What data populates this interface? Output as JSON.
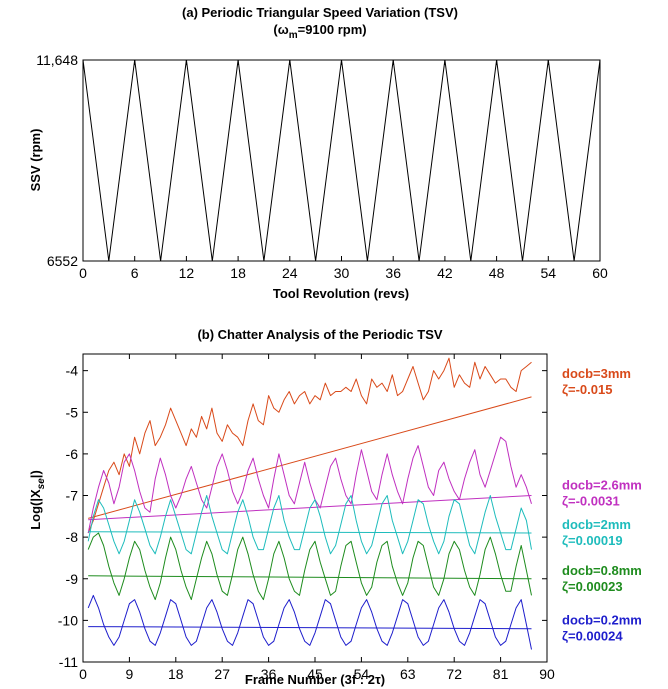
{
  "chart_data": [
    {
      "type": "line",
      "title": "(a) Periodic Triangular Speed Variation  (TSV)",
      "subtitle_prefix": "(",
      "subtitle_omega": "ω",
      "subtitle_sub": "m",
      "subtitle_suffix": "=9100 rpm)",
      "xlabel": "Tool Revolution (revs)",
      "ylabel": "SSV (rpm)",
      "xlim": [
        0,
        60
      ],
      "ylim": [
        6552,
        11648
      ],
      "xticks": [
        0,
        6,
        12,
        18,
        24,
        30,
        36,
        42,
        48,
        54,
        60
      ],
      "yticks": [
        6552,
        11648
      ],
      "ytick_labels": [
        "6552",
        "11,648"
      ],
      "grid": false,
      "series": [
        {
          "color": "#000000",
          "x": [
            0,
            3,
            6,
            9,
            12,
            15,
            18,
            21,
            24,
            27,
            30,
            33,
            36,
            39,
            42,
            45,
            48,
            51,
            54,
            57,
            60
          ],
          "y": [
            11648,
            6552,
            11648,
            6552,
            11648,
            6552,
            11648,
            6552,
            11648,
            6552,
            11648,
            6552,
            11648,
            6552,
            11648,
            6552,
            11648,
            6552,
            11648,
            6552,
            11648
          ]
        }
      ]
    },
    {
      "type": "line",
      "title": "(b) Chatter Analysis of the Periodic TSV",
      "xlabel": "Frame Number  (3f : 2τ)",
      "ylabel_prefix": "Log(|X",
      "ylabel_sub": "se",
      "ylabel_suffix": "|)",
      "xlim": [
        0,
        90
      ],
      "ylim": [
        -11,
        -3.6
      ],
      "xticks": [
        0,
        9,
        18,
        27,
        36,
        45,
        54,
        63,
        72,
        81,
        90
      ],
      "yticks": [
        -11,
        -10,
        -9,
        -8,
        -7,
        -6,
        -5,
        -4
      ],
      "grid": false,
      "series": [
        {
          "name": "docb=3mm",
          "zeta": "ζ=-0.015",
          "color": "#d94a1a",
          "x": [
            1,
            2,
            3,
            4,
            5,
            6,
            7,
            8,
            9,
            10,
            11,
            12,
            13,
            14,
            15,
            16,
            17,
            18,
            19,
            20,
            21,
            22,
            23,
            24,
            25,
            26,
            27,
            28,
            29,
            30,
            31,
            32,
            33,
            34,
            35,
            36,
            37,
            38,
            39,
            40,
            41,
            42,
            43,
            44,
            45,
            46,
            47,
            48,
            49,
            50,
            51,
            52,
            53,
            54,
            55,
            56,
            57,
            58,
            59,
            60,
            61,
            62,
            63,
            64,
            65,
            66,
            67,
            68,
            69,
            70,
            71,
            72,
            73,
            74,
            75,
            76,
            77,
            78,
            79,
            80,
            81,
            82,
            83,
            84,
            85,
            86,
            87
          ],
          "y": [
            -7.9,
            -7.6,
            -7.2,
            -6.8,
            -6.4,
            -6.2,
            -6.5,
            -6.0,
            -6.3,
            -5.6,
            -6.0,
            -5.5,
            -5.2,
            -5.8,
            -5.6,
            -5.3,
            -4.9,
            -5.2,
            -5.5,
            -5.8,
            -5.4,
            -5.6,
            -5.1,
            -5.4,
            -4.9,
            -5.5,
            -5.7,
            -5.3,
            -5.5,
            -5.6,
            -5.8,
            -5.2,
            -4.8,
            -5.2,
            -5.3,
            -4.6,
            -4.9,
            -5.0,
            -4.7,
            -4.5,
            -4.8,
            -4.6,
            -4.5,
            -4.8,
            -4.6,
            -4.7,
            -4.3,
            -4.6,
            -4.5,
            -4.5,
            -4.4,
            -4.5,
            -4.2,
            -4.6,
            -4.8,
            -4.2,
            -4.4,
            -4.3,
            -4.5,
            -4.1,
            -4.6,
            -4.5,
            -4.2,
            -3.9,
            -4.3,
            -4.7,
            -4.5,
            -4.0,
            -4.2,
            -4.0,
            -3.7,
            -4.4,
            -4.1,
            -4.3,
            -4.4,
            -3.8,
            -4.2,
            -3.9,
            -4.1,
            -4.3,
            -4.2,
            -4.2,
            -4.4,
            -4.5,
            -4.0,
            -3.9,
            -3.8
          ]
        },
        {
          "name": "docb=3mm fit",
          "color": "#d94a1a",
          "x": [
            1,
            87
          ],
          "y": [
            -7.55,
            -4.63
          ]
        },
        {
          "name": "docb=2.6mm",
          "zeta": "ζ=-0.0031",
          "color": "#c030c0",
          "x": [
            1,
            2,
            3,
            4,
            5,
            6,
            7,
            8,
            9,
            10,
            11,
            12,
            13,
            14,
            15,
            16,
            17,
            18,
            19,
            20,
            21,
            22,
            23,
            24,
            25,
            26,
            27,
            28,
            29,
            30,
            31,
            32,
            33,
            34,
            35,
            36,
            37,
            38,
            39,
            40,
            41,
            42,
            43,
            44,
            45,
            46,
            47,
            48,
            49,
            50,
            51,
            52,
            53,
            54,
            55,
            56,
            57,
            58,
            59,
            60,
            61,
            62,
            63,
            64,
            65,
            66,
            67,
            68,
            69,
            70,
            71,
            72,
            73,
            74,
            75,
            76,
            77,
            78,
            79,
            80,
            81,
            82,
            83,
            84,
            85,
            86,
            87
          ],
          "y": [
            -7.9,
            -7.3,
            -6.8,
            -6.4,
            -6.7,
            -7.2,
            -6.8,
            -6.2,
            -6.0,
            -6.4,
            -6.9,
            -7.3,
            -7.4,
            -6.6,
            -6.1,
            -6.5,
            -7.0,
            -7.3,
            -7.0,
            -6.6,
            -6.3,
            -6.7,
            -7.1,
            -7.3,
            -6.8,
            -6.3,
            -6.0,
            -6.4,
            -6.9,
            -7.2,
            -6.9,
            -6.4,
            -6.1,
            -6.6,
            -7.0,
            -7.3,
            -6.6,
            -6.0,
            -6.5,
            -7.0,
            -7.2,
            -6.7,
            -6.2,
            -6.7,
            -7.1,
            -7.3,
            -6.8,
            -6.3,
            -6.1,
            -6.6,
            -7.0,
            -7.2,
            -6.5,
            -5.9,
            -6.4,
            -6.9,
            -7.1,
            -6.5,
            -6.0,
            -6.5,
            -6.9,
            -7.2,
            -6.6,
            -6.1,
            -5.8,
            -6.3,
            -6.8,
            -7.0,
            -6.4,
            -6.2,
            -6.6,
            -6.9,
            -7.1,
            -6.6,
            -6.2,
            -5.9,
            -6.5,
            -6.8,
            -6.4,
            -6.0,
            -5.6,
            -5.7,
            -6.3,
            -6.8,
            -6.5,
            -6.8,
            -7.2
          ]
        },
        {
          "name": "docb=2.6mm fit",
          "color": "#c030c0",
          "x": [
            1,
            87
          ],
          "y": [
            -7.58,
            -7.0
          ]
        },
        {
          "name": "docb=2mm",
          "zeta": "ζ=0.00019",
          "color": "#1ebcbc",
          "x": [
            1,
            2,
            3,
            4,
            5,
            6,
            7,
            8,
            9,
            10,
            11,
            12,
            13,
            14,
            15,
            16,
            17,
            18,
            19,
            20,
            21,
            22,
            23,
            24,
            25,
            26,
            27,
            28,
            29,
            30,
            31,
            32,
            33,
            34,
            35,
            36,
            37,
            38,
            39,
            40,
            41,
            42,
            43,
            44,
            45,
            46,
            47,
            48,
            49,
            50,
            51,
            52,
            53,
            54,
            55,
            56,
            57,
            58,
            59,
            60,
            61,
            62,
            63,
            64,
            65,
            66,
            67,
            68,
            69,
            70,
            71,
            72,
            73,
            74,
            75,
            76,
            77,
            78,
            79,
            80,
            81,
            82,
            83,
            84,
            85,
            86,
            87
          ],
          "y": [
            -8.1,
            -7.5,
            -7.1,
            -7.3,
            -7.7,
            -8.1,
            -8.4,
            -8.1,
            -7.6,
            -7.1,
            -7.4,
            -7.8,
            -8.2,
            -8.4,
            -8.0,
            -7.5,
            -7.1,
            -7.5,
            -7.9,
            -8.3,
            -8.4,
            -7.9,
            -7.4,
            -7.0,
            -7.5,
            -7.9,
            -8.3,
            -8.4,
            -7.9,
            -7.4,
            -7.1,
            -7.5,
            -8.0,
            -8.3,
            -8.3,
            -7.8,
            -7.3,
            -7.0,
            -7.6,
            -8.0,
            -8.3,
            -8.3,
            -7.8,
            -7.3,
            -7.1,
            -7.5,
            -8.0,
            -8.4,
            -8.2,
            -7.7,
            -7.2,
            -7.0,
            -7.6,
            -8.1,
            -8.4,
            -8.2,
            -7.7,
            -7.2,
            -7.0,
            -7.6,
            -8.0,
            -8.4,
            -8.1,
            -7.6,
            -7.1,
            -7.2,
            -7.7,
            -8.1,
            -8.4,
            -8.1,
            -7.5,
            -7.1,
            -7.2,
            -7.7,
            -8.2,
            -8.4,
            -7.9,
            -7.4,
            -7.0,
            -7.5,
            -7.9,
            -8.3,
            -8.3,
            -7.8,
            -7.3,
            -7.6,
            -8.3
          ]
        },
        {
          "name": "docb=2mm fit",
          "color": "#1ebcbc",
          "x": [
            1,
            87
          ],
          "y": [
            -7.87,
            -7.9
          ]
        },
        {
          "name": "docb=0.8mm",
          "zeta": "ζ=0.00023",
          "color": "#1e8c1e",
          "x": [
            1,
            2,
            3,
            4,
            5,
            6,
            7,
            8,
            9,
            10,
            11,
            12,
            13,
            14,
            15,
            16,
            17,
            18,
            19,
            20,
            21,
            22,
            23,
            24,
            25,
            26,
            27,
            28,
            29,
            30,
            31,
            32,
            33,
            34,
            35,
            36,
            37,
            38,
            39,
            40,
            41,
            42,
            43,
            44,
            45,
            46,
            47,
            48,
            49,
            50,
            51,
            52,
            53,
            54,
            55,
            56,
            57,
            58,
            59,
            60,
            61,
            62,
            63,
            64,
            65,
            66,
            67,
            68,
            69,
            70,
            71,
            72,
            73,
            74,
            75,
            76,
            77,
            78,
            79,
            80,
            81,
            82,
            83,
            84,
            85,
            86,
            87
          ],
          "y": [
            -8.3,
            -8.0,
            -7.9,
            -8.2,
            -8.7,
            -9.1,
            -9.4,
            -9.0,
            -8.5,
            -8.1,
            -8.3,
            -8.8,
            -9.2,
            -9.5,
            -9.1,
            -8.5,
            -8.0,
            -8.3,
            -8.8,
            -9.2,
            -9.5,
            -9.0,
            -8.5,
            -8.1,
            -8.4,
            -8.9,
            -9.3,
            -9.4,
            -8.9,
            -8.3,
            -8.0,
            -8.4,
            -8.9,
            -9.3,
            -9.5,
            -9.0,
            -8.4,
            -8.1,
            -8.5,
            -9.0,
            -9.3,
            -9.4,
            -8.8,
            -8.3,
            -8.1,
            -8.6,
            -9.0,
            -9.4,
            -9.3,
            -8.7,
            -8.2,
            -8.1,
            -8.6,
            -9.1,
            -9.4,
            -9.2,
            -8.6,
            -8.2,
            -8.1,
            -8.7,
            -9.1,
            -9.4,
            -9.1,
            -8.5,
            -8.1,
            -8.2,
            -8.7,
            -9.2,
            -9.4,
            -9.0,
            -8.4,
            -8.1,
            -8.3,
            -8.8,
            -9.2,
            -9.4,
            -8.9,
            -8.3,
            -8.0,
            -8.4,
            -8.9,
            -9.3,
            -9.3,
            -8.7,
            -8.2,
            -8.8,
            -9.4
          ]
        },
        {
          "name": "docb=0.8mm fit",
          "color": "#1e8c1e",
          "x": [
            1,
            87
          ],
          "y": [
            -8.93,
            -9.0
          ]
        },
        {
          "name": "docb=0.2mm",
          "zeta": "ζ=0.00024",
          "color": "#1e1ecc",
          "x": [
            1,
            2,
            3,
            4,
            5,
            6,
            7,
            8,
            9,
            10,
            11,
            12,
            13,
            14,
            15,
            16,
            17,
            18,
            19,
            20,
            21,
            22,
            23,
            24,
            25,
            26,
            27,
            28,
            29,
            30,
            31,
            32,
            33,
            34,
            35,
            36,
            37,
            38,
            39,
            40,
            41,
            42,
            43,
            44,
            45,
            46,
            47,
            48,
            49,
            50,
            51,
            52,
            53,
            54,
            55,
            56,
            57,
            58,
            59,
            60,
            61,
            62,
            63,
            64,
            65,
            66,
            67,
            68,
            69,
            70,
            71,
            72,
            73,
            74,
            75,
            76,
            77,
            78,
            79,
            80,
            81,
            82,
            83,
            84,
            85,
            86,
            87
          ],
          "y": [
            -9.7,
            -9.4,
            -9.7,
            -10.1,
            -10.4,
            -10.6,
            -10.4,
            -10.0,
            -9.6,
            -9.5,
            -9.8,
            -10.2,
            -10.5,
            -10.6,
            -10.3,
            -9.9,
            -9.5,
            -9.6,
            -10.0,
            -10.4,
            -10.6,
            -10.5,
            -10.1,
            -9.7,
            -9.5,
            -9.8,
            -10.2,
            -10.5,
            -10.6,
            -10.3,
            -9.9,
            -9.5,
            -9.6,
            -10.0,
            -10.4,
            -10.6,
            -10.5,
            -10.1,
            -9.7,
            -9.5,
            -9.8,
            -10.2,
            -10.5,
            -10.6,
            -10.3,
            -9.9,
            -9.5,
            -9.6,
            -10.0,
            -10.4,
            -10.6,
            -10.5,
            -10.1,
            -9.7,
            -9.5,
            -9.8,
            -10.2,
            -10.5,
            -10.6,
            -10.3,
            -9.9,
            -9.5,
            -9.6,
            -10.0,
            -10.4,
            -10.6,
            -10.5,
            -10.1,
            -9.7,
            -9.5,
            -9.8,
            -10.2,
            -10.5,
            -10.6,
            -10.3,
            -9.9,
            -9.5,
            -9.6,
            -10.0,
            -10.4,
            -10.6,
            -10.5,
            -10.1,
            -9.7,
            -9.5,
            -10.1,
            -10.7
          ]
        },
        {
          "name": "docb=0.2mm fit",
          "color": "#1e1ecc",
          "x": [
            1,
            87
          ],
          "y": [
            -10.15,
            -10.2
          ]
        }
      ]
    }
  ]
}
